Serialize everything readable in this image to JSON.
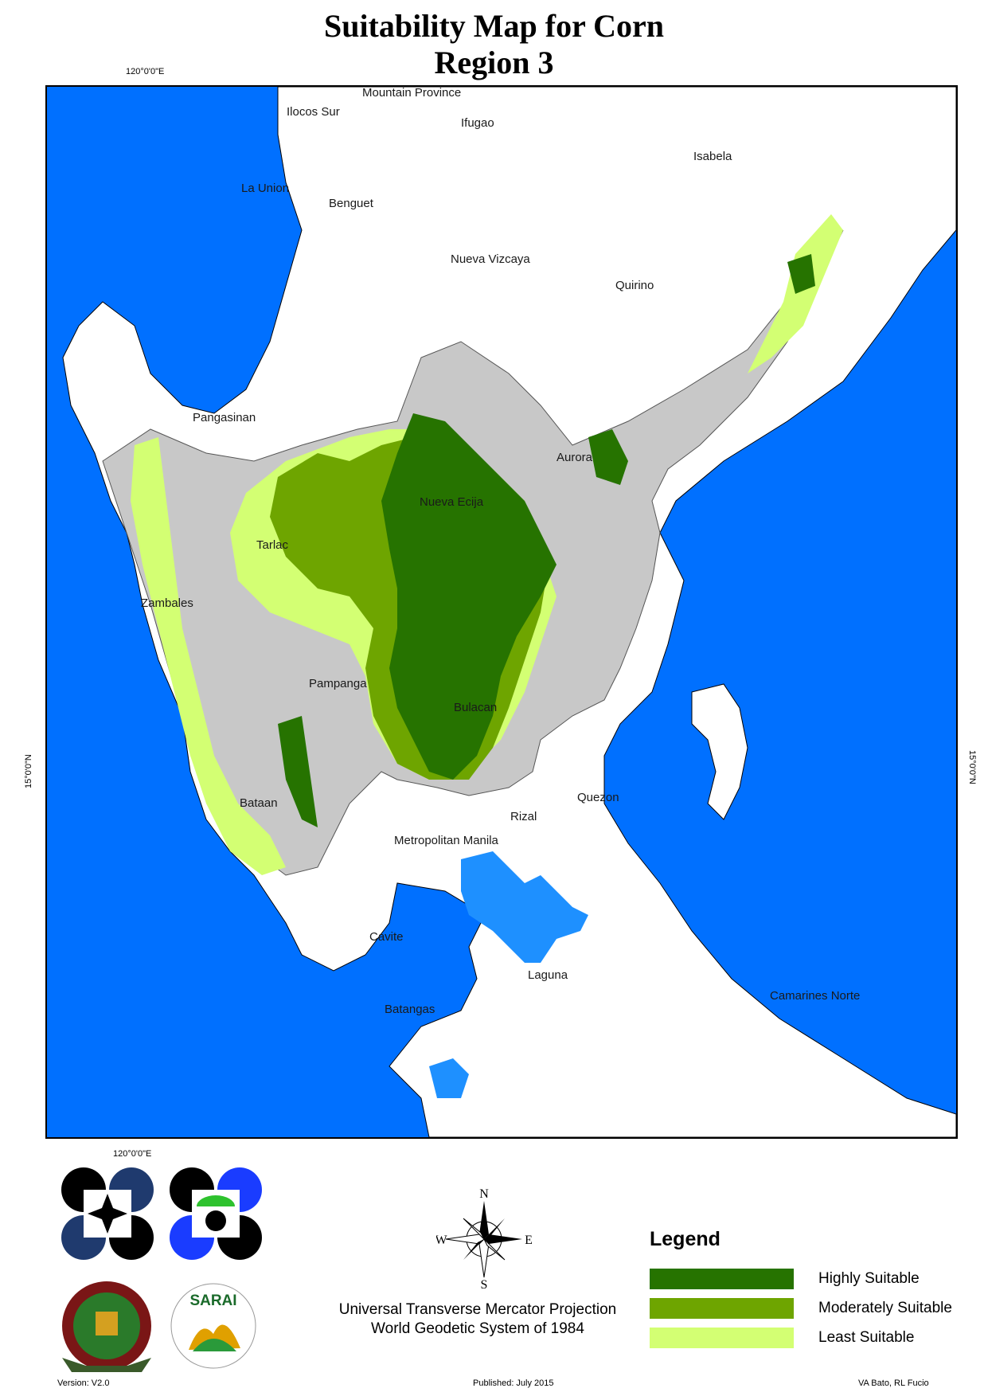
{
  "title": {
    "line1": "Suitability Map for Corn",
    "line2": "Region 3"
  },
  "grid": {
    "lon_top": "120°0'0\"E",
    "lon_bottom": "120°0'0\"E",
    "lat_left": "15°0'0\"N",
    "lat_right": "15°0'0\"N"
  },
  "places": {
    "mountain_province": "Mountain Province",
    "ilocos_sur": "Ilocos Sur",
    "ifugao": "Ifugao",
    "isabela": "Isabela",
    "la_union": "La Union",
    "benguet": "Benguet",
    "nueva_vizcaya": "Nueva Vizcaya",
    "quirino": "Quirino",
    "pangasinan": "Pangasinan",
    "aurora": "Aurora",
    "nueva_ecija": "Nueva Ecija",
    "tarlac": "Tarlac",
    "zambales": "Zambales",
    "pampanga": "Pampanga",
    "bulacan": "Bulacan",
    "bataan": "Bataan",
    "quezon": "Quezon",
    "rizal": "Rizal",
    "metro_manila": "Metropolitan Manila",
    "cavite": "Cavite",
    "laguna": "Laguna",
    "batangas": "Batangas",
    "camarines_norte": "Camarines Norte"
  },
  "compass": {
    "n": "N",
    "s": "S",
    "e": "E",
    "w": "W"
  },
  "legend": {
    "title": "Legend",
    "items": [
      {
        "label": "Highly Suitable",
        "color": "#267300"
      },
      {
        "label": "Moderately Suitable",
        "color": "#6ea500"
      },
      {
        "label": "Least Suitable",
        "color": "#d3ff73"
      }
    ]
  },
  "colors": {
    "sea": "#0070ff",
    "lake": "#1e90ff",
    "land": "#ffffff",
    "region_base": "#c8c8c8"
  },
  "projection": {
    "line1": "Universal Transverse Mercator Projection",
    "line2": "World Geodetic System of 1984"
  },
  "footer": {
    "version": "Version: V2.0",
    "published": "Published: July 2015",
    "authors": "VA Bato, RL Fucio"
  },
  "logos": {
    "sarai": "SARAI"
  }
}
